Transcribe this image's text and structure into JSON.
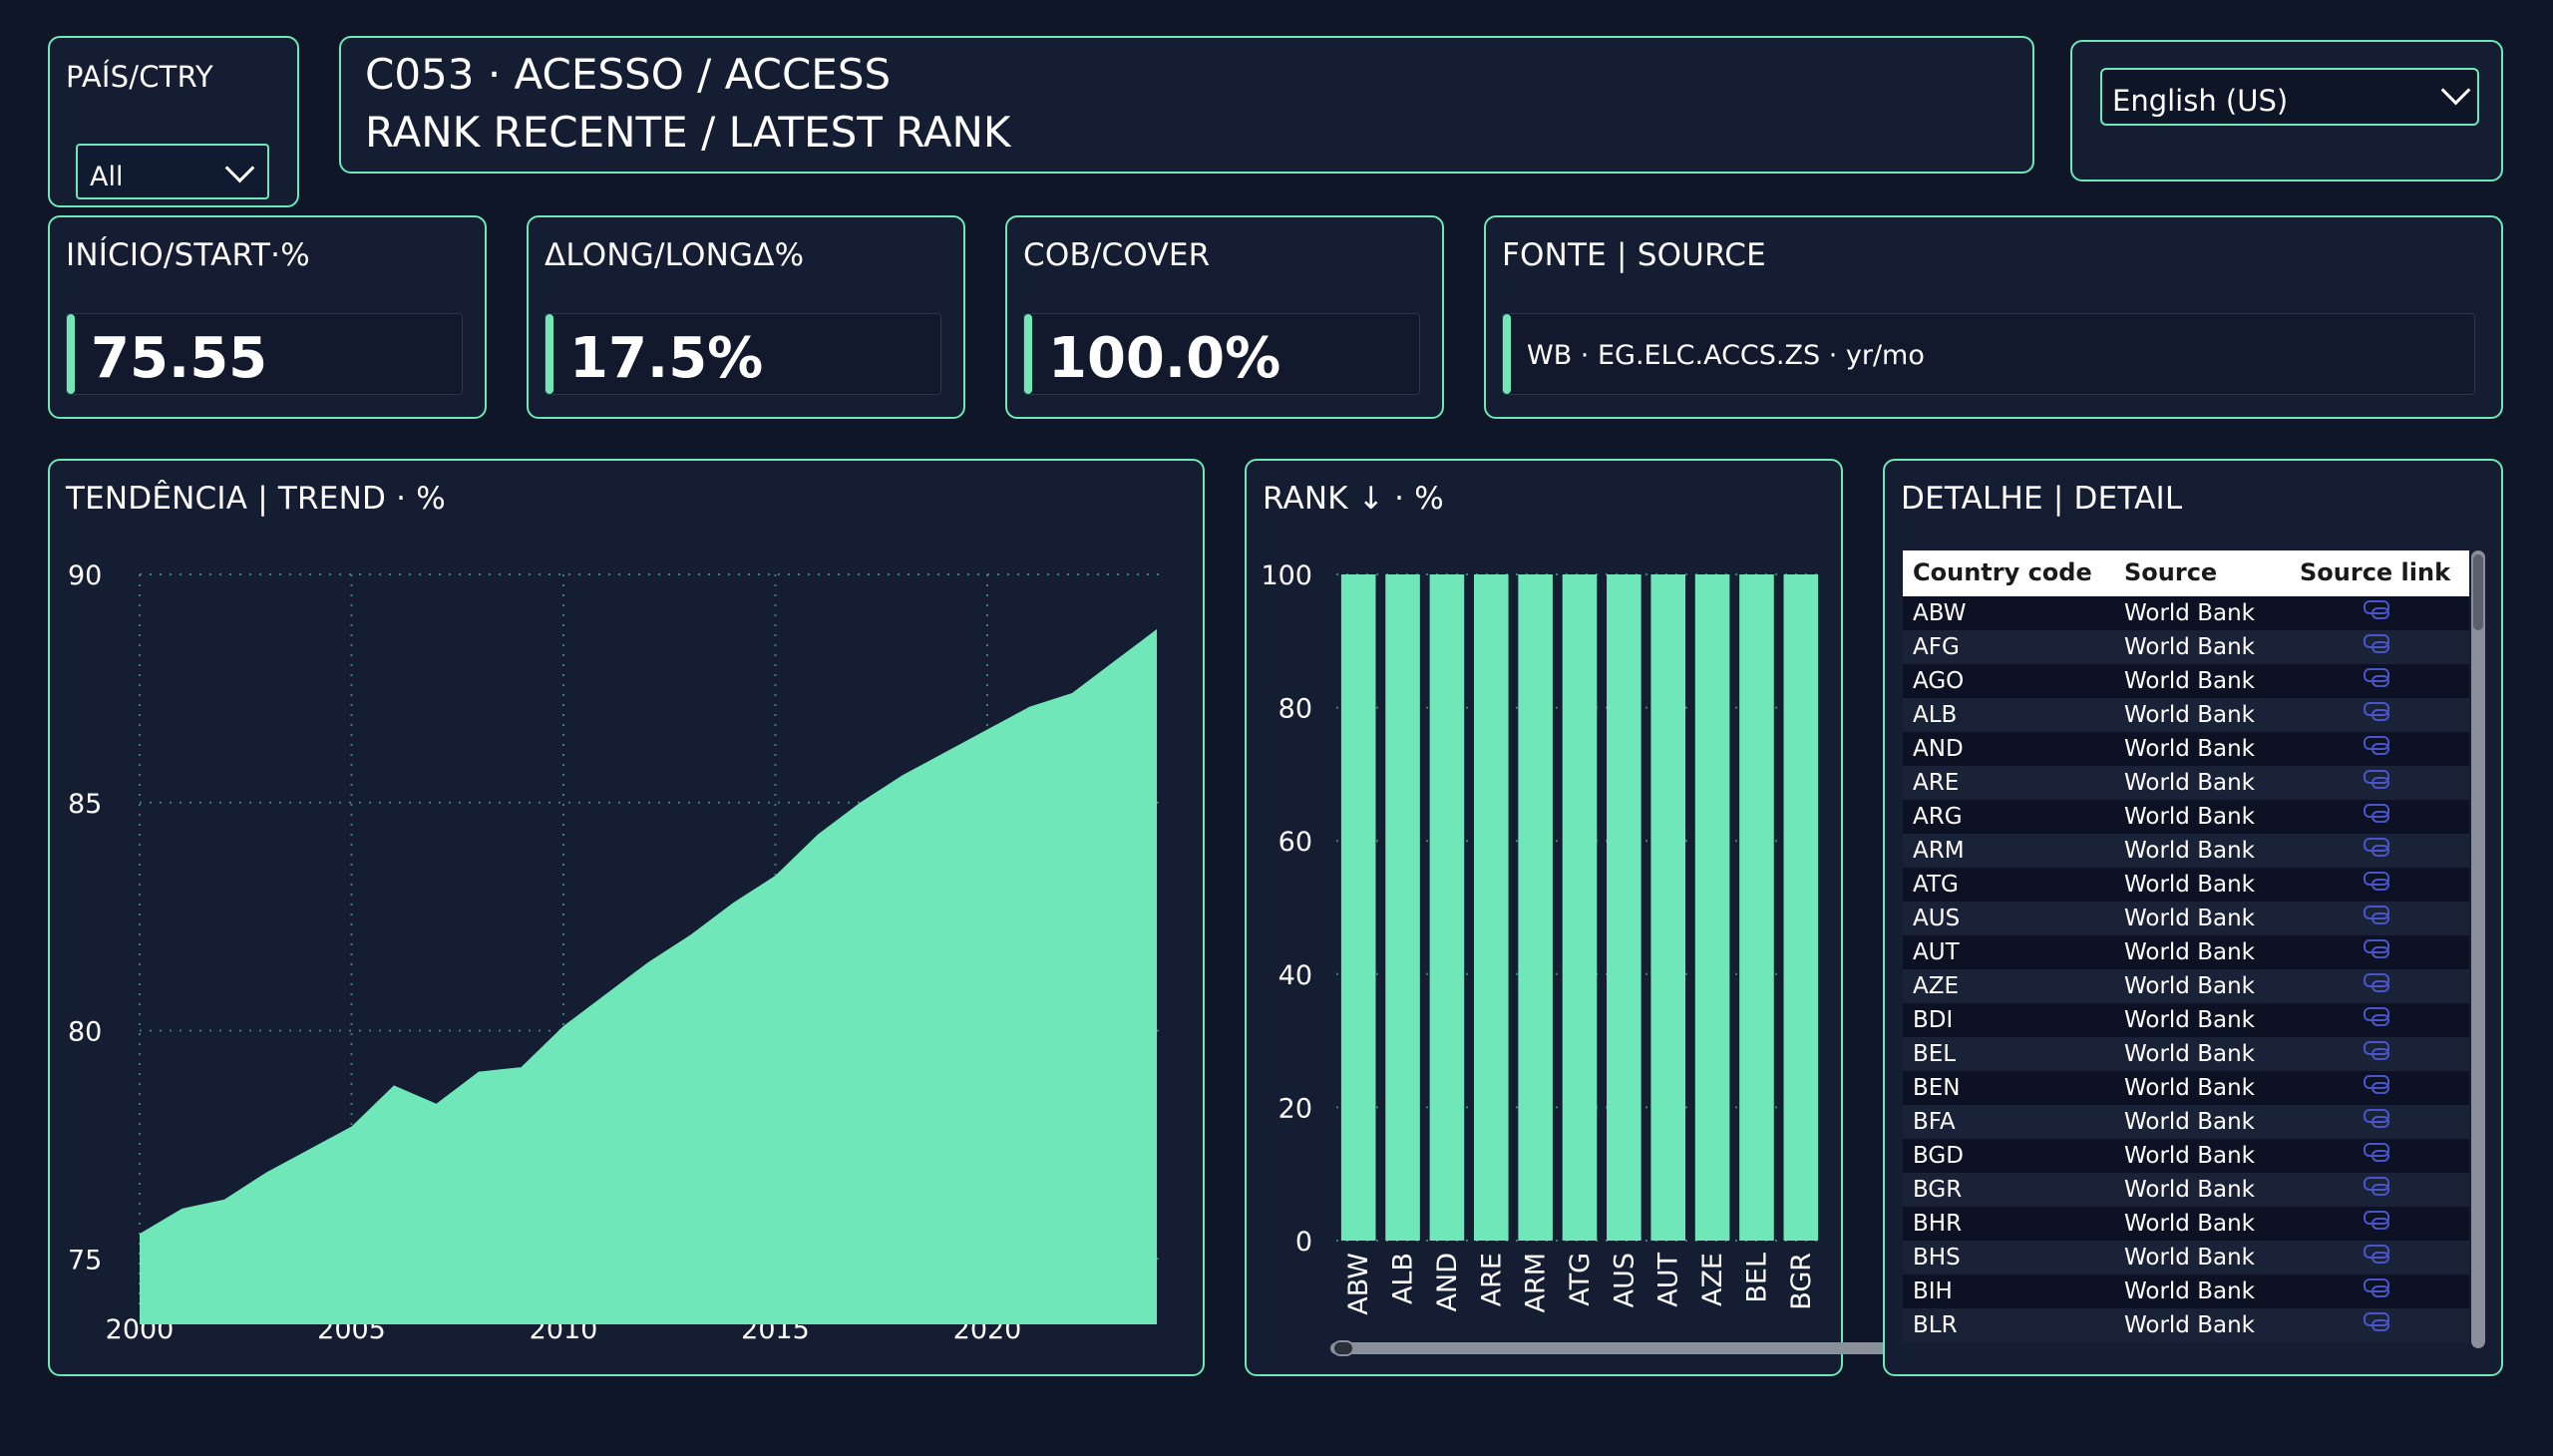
{
  "country_slicer": {
    "label": "PAÍS/CTRY",
    "selected": "All"
  },
  "banner": {
    "line1": "C053 · ACESSO / ACCESS",
    "line2": "RANK RECENTE / LATEST RANK"
  },
  "language": {
    "selected": "English (US)"
  },
  "kpis": [
    {
      "label": "INÍCIO/START·%",
      "value": "75.55"
    },
    {
      "label": "ΔLONG/LONGΔ%",
      "value": "17.5%"
    },
    {
      "label": "COB/COVER",
      "value": "100.0%"
    }
  ],
  "source": {
    "label": "FONTE | SOURCE",
    "value": "WB · EG.ELC.ACCS.ZS · yr/mo"
  },
  "trend": {
    "title": "TENDÊNCIA | TREND · %",
    "chart_data": {
      "type": "area",
      "x": [
        2000,
        2001,
        2002,
        2003,
        2004,
        2005,
        2006,
        2007,
        2008,
        2009,
        2010,
        2011,
        2012,
        2013,
        2014,
        2015,
        2016,
        2017,
        2018,
        2019,
        2020,
        2021,
        2022,
        2023,
        2024
      ],
      "y": [
        75.55,
        76.1,
        76.3,
        76.9,
        77.4,
        77.9,
        78.8,
        78.4,
        79.1,
        79.2,
        80.1,
        80.8,
        81.5,
        82.1,
        82.8,
        83.4,
        84.3,
        85.0,
        85.6,
        86.1,
        86.6,
        87.1,
        87.4,
        88.1,
        88.8
      ],
      "xticks": [
        "2000",
        "2005",
        "2010",
        "2015",
        "2020"
      ],
      "yticks": [
        "75",
        "80",
        "85",
        "90"
      ],
      "ylim": [
        74,
        90
      ],
      "xlim": [
        2000,
        2024
      ],
      "grid": true,
      "color": "#6fe7b8"
    }
  },
  "rank": {
    "title": "RANK ↓ · %",
    "chart_data": {
      "type": "bar",
      "categories": [
        "ABW",
        "ALB",
        "AND",
        "ARE",
        "ARM",
        "ATG",
        "AUS",
        "AUT",
        "AZE",
        "BEL",
        "BGR"
      ],
      "values": [
        100,
        100,
        100,
        100,
        100,
        100,
        100,
        100,
        100,
        100,
        100
      ],
      "yticks": [
        "0",
        "20",
        "40",
        "60",
        "80",
        "100"
      ],
      "ylim": [
        0,
        100
      ],
      "grid": true,
      "color": "#6fe7b8"
    }
  },
  "detail": {
    "title": "DETALHE | DETAIL",
    "columns": [
      "Country code",
      "Source",
      "Source link"
    ],
    "rows": [
      [
        "ABW",
        "World Bank"
      ],
      [
        "AFG",
        "World Bank"
      ],
      [
        "AGO",
        "World Bank"
      ],
      [
        "ALB",
        "World Bank"
      ],
      [
        "AND",
        "World Bank"
      ],
      [
        "ARE",
        "World Bank"
      ],
      [
        "ARG",
        "World Bank"
      ],
      [
        "ARM",
        "World Bank"
      ],
      [
        "ATG",
        "World Bank"
      ],
      [
        "AUS",
        "World Bank"
      ],
      [
        "AUT",
        "World Bank"
      ],
      [
        "AZE",
        "World Bank"
      ],
      [
        "BDI",
        "World Bank"
      ],
      [
        "BEL",
        "World Bank"
      ],
      [
        "BEN",
        "World Bank"
      ],
      [
        "BFA",
        "World Bank"
      ],
      [
        "BGD",
        "World Bank"
      ],
      [
        "BGR",
        "World Bank"
      ],
      [
        "BHR",
        "World Bank"
      ],
      [
        "BHS",
        "World Bank"
      ],
      [
        "BIH",
        "World Bank"
      ],
      [
        "BLR",
        "World Bank"
      ]
    ],
    "link_icon": "link-icon"
  },
  "colors": {
    "accent": "#6fe7b8",
    "background": "#0f1628",
    "card": "#151d33"
  }
}
